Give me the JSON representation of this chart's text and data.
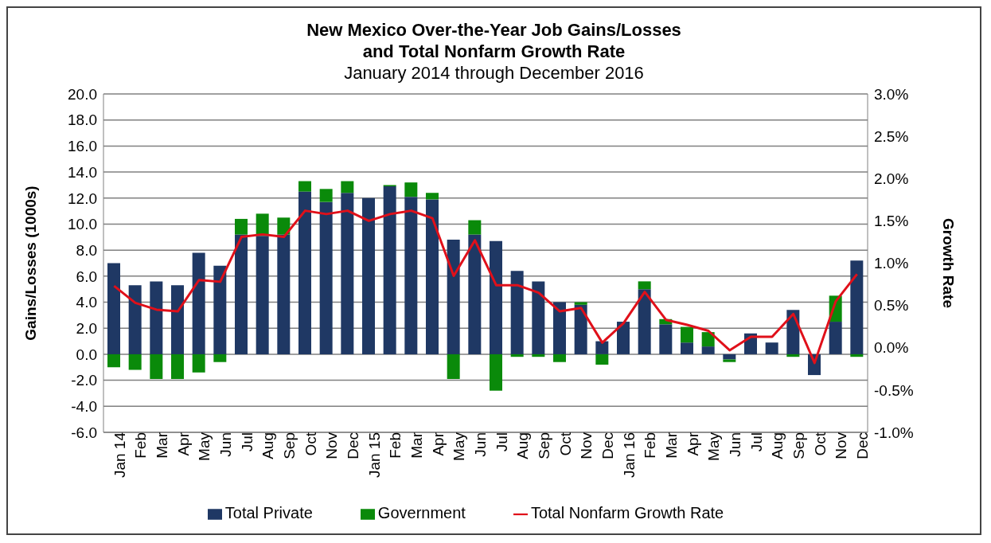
{
  "chart_data": {
    "type": "bar",
    "stacked": true,
    "title": "New Mexico Over-the-Year Job Gains/Losses\nand Total Nonfarm Growth Rate",
    "subtitle": "January 2014 through December 2016",
    "ylabel": "Gains/Losses  (1000s)",
    "y2label": "Growth Rate",
    "categories": [
      "Jan 14",
      "Feb",
      "Mar",
      "Apr",
      "May",
      "Jun",
      "Jul",
      "Aug",
      "Sep",
      "Oct",
      "Nov",
      "Dec",
      "Jan 15",
      "Feb",
      "Mar",
      "Apr",
      "May",
      "Jun",
      "Jul",
      "Aug",
      "Sep",
      "Oct",
      "Nov",
      "Dec",
      "Jan 16",
      "Feb",
      "Mar",
      "Apr",
      "May",
      "Jun",
      "Jul",
      "Aug",
      "Sep",
      "Oct",
      "Nov",
      "Dec"
    ],
    "series": [
      {
        "name": "Total Private",
        "color": "#1f3864",
        "values": [
          7.0,
          5.3,
          5.6,
          5.3,
          7.8,
          6.8,
          9.2,
          9.1,
          9.2,
          12.5,
          11.7,
          12.4,
          12.0,
          12.9,
          12.1,
          11.9,
          8.8,
          9.2,
          8.7,
          6.4,
          5.6,
          4.0,
          3.8,
          1.0,
          2.5,
          5.0,
          2.3,
          0.9,
          0.6,
          -0.4,
          1.6,
          0.9,
          3.4,
          -1.6,
          2.5,
          7.2
        ]
      },
      {
        "name": "Government",
        "color": "#0a8a0a",
        "values": [
          -1.0,
          -1.2,
          -1.9,
          -1.9,
          -1.4,
          -0.6,
          1.2,
          1.7,
          1.3,
          0.8,
          1.0,
          0.9,
          0.0,
          0.1,
          1.1,
          0.5,
          -1.9,
          1.1,
          -2.8,
          -0.2,
          -0.2,
          -0.6,
          0.2,
          -0.8,
          0.0,
          0.6,
          0.4,
          1.2,
          1.1,
          -0.2,
          0.0,
          0.0,
          -0.2,
          0.0,
          2.0,
          -0.2
        ]
      },
      {
        "name": "Total Nonfarm Growth Rate",
        "type": "line",
        "axis": "y2",
        "color": "#e0101a",
        "values": [
          0.73,
          0.53,
          0.45,
          0.43,
          0.8,
          0.78,
          1.31,
          1.34,
          1.31,
          1.62,
          1.58,
          1.62,
          1.5,
          1.58,
          1.62,
          1.53,
          0.85,
          1.27,
          0.74,
          0.74,
          0.65,
          0.43,
          0.47,
          0.06,
          0.29,
          0.66,
          0.33,
          0.27,
          0.2,
          -0.03,
          0.13,
          0.13,
          0.4,
          -0.18,
          0.55,
          0.87
        ]
      }
    ],
    "ylim": [
      -6,
      20
    ],
    "yticks": [
      {
        "value": -6,
        "label": "-6.0"
      },
      {
        "value": -4,
        "label": "-4.0"
      },
      {
        "value": -2,
        "label": "-2.0"
      },
      {
        "value": 0,
        "label": "0.0"
      },
      {
        "value": 2,
        "label": "2.0"
      },
      {
        "value": 4,
        "label": "4.0"
      },
      {
        "value": 6,
        "label": "6.0"
      },
      {
        "value": 8,
        "label": "8.0"
      },
      {
        "value": 10,
        "label": "10.0"
      },
      {
        "value": 12,
        "label": "12.0"
      },
      {
        "value": 14,
        "label": "14.0"
      },
      {
        "value": 16,
        "label": "16.0"
      },
      {
        "value": 18,
        "label": "18.0"
      },
      {
        "value": 20,
        "label": "20.0"
      }
    ],
    "y2lim": [
      -1,
      3
    ],
    "y2ticks": [
      {
        "value": -1,
        "label": "-1.0%"
      },
      {
        "value": -0.5,
        "label": "-0.5%"
      },
      {
        "value": 0,
        "label": "0.0%"
      },
      {
        "value": 0.5,
        "label": "0.5%"
      },
      {
        "value": 1,
        "label": "1.0%"
      },
      {
        "value": 1.5,
        "label": "1.5%"
      },
      {
        "value": 2,
        "label": "2.0%"
      },
      {
        "value": 2.5,
        "label": "2.5%"
      },
      {
        "value": 3,
        "label": "3.0%"
      }
    ],
    "grid": "y",
    "legend": "bottom",
    "marker": "none",
    "line_style": "solid"
  }
}
